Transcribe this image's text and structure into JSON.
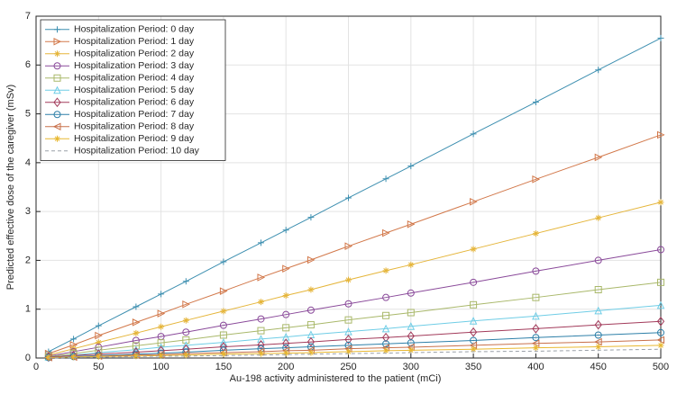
{
  "chart_data": {
    "type": "line",
    "xlabel": "Au-198 activity administered to the patient (mCi)",
    "ylabel": "Predicted effective dose of the caregiver (mSv)",
    "x": [
      10,
      30,
      50,
      80,
      100,
      120,
      150,
      180,
      200,
      220,
      250,
      280,
      300,
      350,
      400,
      450,
      500
    ],
    "xlim": [
      0,
      500
    ],
    "xticks": [
      0,
      50,
      100,
      150,
      200,
      250,
      300,
      350,
      400,
      450,
      500
    ],
    "ylim": [
      0,
      7
    ],
    "yticks": [
      0,
      1,
      2,
      3,
      4,
      5,
      6,
      7
    ],
    "grid": true,
    "legend": "upper-left",
    "series": [
      {
        "name": "Hospitalization Period: 0 day",
        "color": "#3d8fb0",
        "marker": "plus",
        "values": [
          0.13,
          0.39,
          0.66,
          1.05,
          1.31,
          1.57,
          1.97,
          2.36,
          2.62,
          2.88,
          3.28,
          3.67,
          3.93,
          4.59,
          5.24,
          5.9,
          6.55
        ]
      },
      {
        "name": "Hospitalization Period: 1 day",
        "color": "#d2784a",
        "marker": "triangle-right",
        "values": [
          0.09,
          0.27,
          0.46,
          0.73,
          0.91,
          1.1,
          1.37,
          1.65,
          1.83,
          2.01,
          2.29,
          2.56,
          2.74,
          3.2,
          3.66,
          4.11,
          4.57
        ]
      },
      {
        "name": "Hospitalization Period: 2 day",
        "color": "#e5b53a",
        "marker": "star",
        "values": [
          0.06,
          0.19,
          0.32,
          0.51,
          0.64,
          0.77,
          0.96,
          1.15,
          1.28,
          1.4,
          1.6,
          1.79,
          1.91,
          2.23,
          2.55,
          2.87,
          3.19
        ]
      },
      {
        "name": "Hospitalization Period: 3 day",
        "color": "#8a4a9a",
        "marker": "circle",
        "values": [
          0.04,
          0.13,
          0.22,
          0.36,
          0.44,
          0.53,
          0.67,
          0.8,
          0.89,
          0.98,
          1.11,
          1.24,
          1.33,
          1.55,
          1.78,
          2.0,
          2.22
        ]
      },
      {
        "name": "Hospitalization Period: 4 day",
        "color": "#a9b86a",
        "marker": "square",
        "values": [
          0.03,
          0.09,
          0.16,
          0.25,
          0.31,
          0.37,
          0.47,
          0.56,
          0.62,
          0.68,
          0.78,
          0.87,
          0.93,
          1.09,
          1.24,
          1.4,
          1.55
        ]
      },
      {
        "name": "Hospitalization Period: 5 day",
        "color": "#6fcde6",
        "marker": "triangle-up",
        "values": [
          0.02,
          0.06,
          0.11,
          0.17,
          0.22,
          0.26,
          0.32,
          0.39,
          0.43,
          0.48,
          0.54,
          0.6,
          0.65,
          0.76,
          0.86,
          0.97,
          1.08
        ]
      },
      {
        "name": "Hospitalization Period: 6 day",
        "color": "#a23a5a",
        "marker": "diamond",
        "values": [
          0.02,
          0.05,
          0.08,
          0.12,
          0.15,
          0.18,
          0.23,
          0.27,
          0.3,
          0.33,
          0.38,
          0.42,
          0.45,
          0.53,
          0.6,
          0.68,
          0.75
        ]
      },
      {
        "name": "Hospitalization Period: 7 day",
        "color": "#2d7fa8",
        "marker": "circle",
        "values": [
          0.01,
          0.03,
          0.05,
          0.08,
          0.1,
          0.12,
          0.16,
          0.19,
          0.21,
          0.23,
          0.26,
          0.29,
          0.31,
          0.36,
          0.42,
          0.47,
          0.52
        ]
      },
      {
        "name": "Hospitalization Period: 8 day",
        "color": "#c8704a",
        "marker": "triangle-left",
        "values": [
          0.01,
          0.02,
          0.04,
          0.06,
          0.07,
          0.09,
          0.11,
          0.13,
          0.15,
          0.16,
          0.19,
          0.21,
          0.22,
          0.26,
          0.3,
          0.33,
          0.37
        ]
      },
      {
        "name": "Hospitalization Period: 9 day",
        "color": "#e8b830",
        "marker": "star",
        "values": [
          0.01,
          0.02,
          0.03,
          0.04,
          0.05,
          0.06,
          0.08,
          0.09,
          0.1,
          0.11,
          0.13,
          0.15,
          0.16,
          0.18,
          0.21,
          0.23,
          0.26
        ]
      },
      {
        "name": "Hospitalization Period: 10 day",
        "color": "#9aa0a8",
        "linestyle": "dashed",
        "values": [
          0,
          0.01,
          0.02,
          0.03,
          0.04,
          0.04,
          0.05,
          0.06,
          0.07,
          0.08,
          0.09,
          0.1,
          0.11,
          0.13,
          0.14,
          0.16,
          0.18
        ]
      }
    ]
  }
}
